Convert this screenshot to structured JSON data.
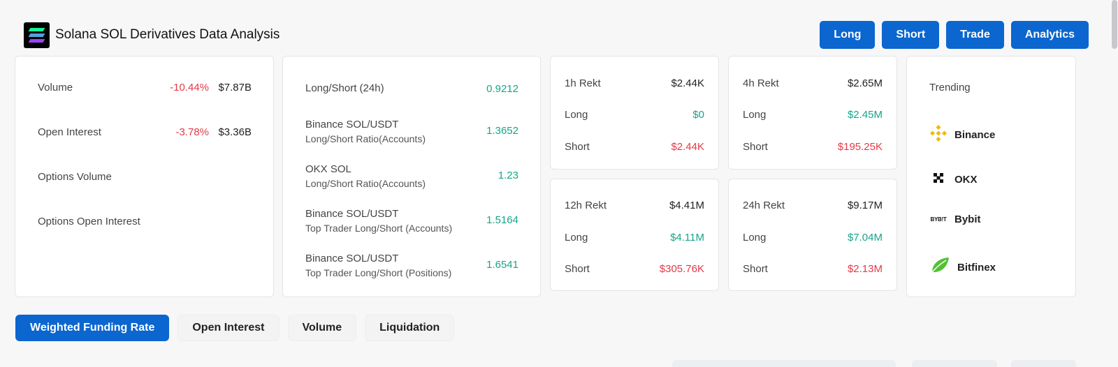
{
  "header": {
    "title": "Solana SOL Derivatives Data Analysis",
    "logo_icon": "solana-logo"
  },
  "actions": [
    "Long",
    "Short",
    "Trade",
    "Analytics"
  ],
  "overview": [
    {
      "label": "Volume",
      "change": "-10.44%",
      "value": "$7.87B"
    },
    {
      "label": "Open Interest",
      "change": "-3.78%",
      "value": "$3.36B"
    },
    {
      "label": "Options Volume",
      "change": "",
      "value": ""
    },
    {
      "label": "Options Open Interest",
      "change": "",
      "value": ""
    }
  ],
  "ratios": [
    {
      "line1": "Long/Short (24h)",
      "line2": "",
      "value": "0.9212"
    },
    {
      "line1": "Binance SOL/USDT",
      "line2": "Long/Short Ratio(Accounts)",
      "value": "1.3652"
    },
    {
      "line1": "OKX SOL",
      "line2": "Long/Short Ratio(Accounts)",
      "value": "1.23"
    },
    {
      "line1": "Binance SOL/USDT",
      "line2": "Top Trader Long/Short (Accounts)",
      "value": "1.5164"
    },
    {
      "line1": "Binance SOL/USDT",
      "line2": "Top Trader Long/Short (Positions)",
      "value": "1.6541"
    }
  ],
  "rekt": [
    {
      "title": "1h Rekt",
      "total": "$2.44K",
      "long_label": "Long",
      "long": "$0",
      "short_label": "Short",
      "short": "$2.44K"
    },
    {
      "title": "4h Rekt",
      "total": "$2.65M",
      "long_label": "Long",
      "long": "$2.45M",
      "short_label": "Short",
      "short": "$195.25K"
    },
    {
      "title": "12h Rekt",
      "total": "$4.41M",
      "long_label": "Long",
      "long": "$4.11M",
      "short_label": "Short",
      "short": "$305.76K"
    },
    {
      "title": "24h Rekt",
      "total": "$9.17M",
      "long_label": "Long",
      "long": "$7.04M",
      "short_label": "Short",
      "short": "$2.13M"
    }
  ],
  "trending": {
    "title": "Trending",
    "items": [
      {
        "name": "Binance",
        "icon": "binance-icon"
      },
      {
        "name": "OKX",
        "icon": "okx-icon"
      },
      {
        "name": "Bybit",
        "icon": "bybit-icon",
        "icon_text": "BYB!T"
      },
      {
        "name": "Bitfinex",
        "icon": "bitfinex-icon"
      }
    ]
  },
  "tabs": [
    {
      "label": "Weighted Funding Rate",
      "active": true
    },
    {
      "label": "Open Interest",
      "active": false
    },
    {
      "label": "Volume",
      "active": false
    },
    {
      "label": "Liquidation",
      "active": false
    }
  ],
  "colors": {
    "primary": "#0b66cf",
    "negative": "#e53946",
    "positive": "#17a589"
  }
}
